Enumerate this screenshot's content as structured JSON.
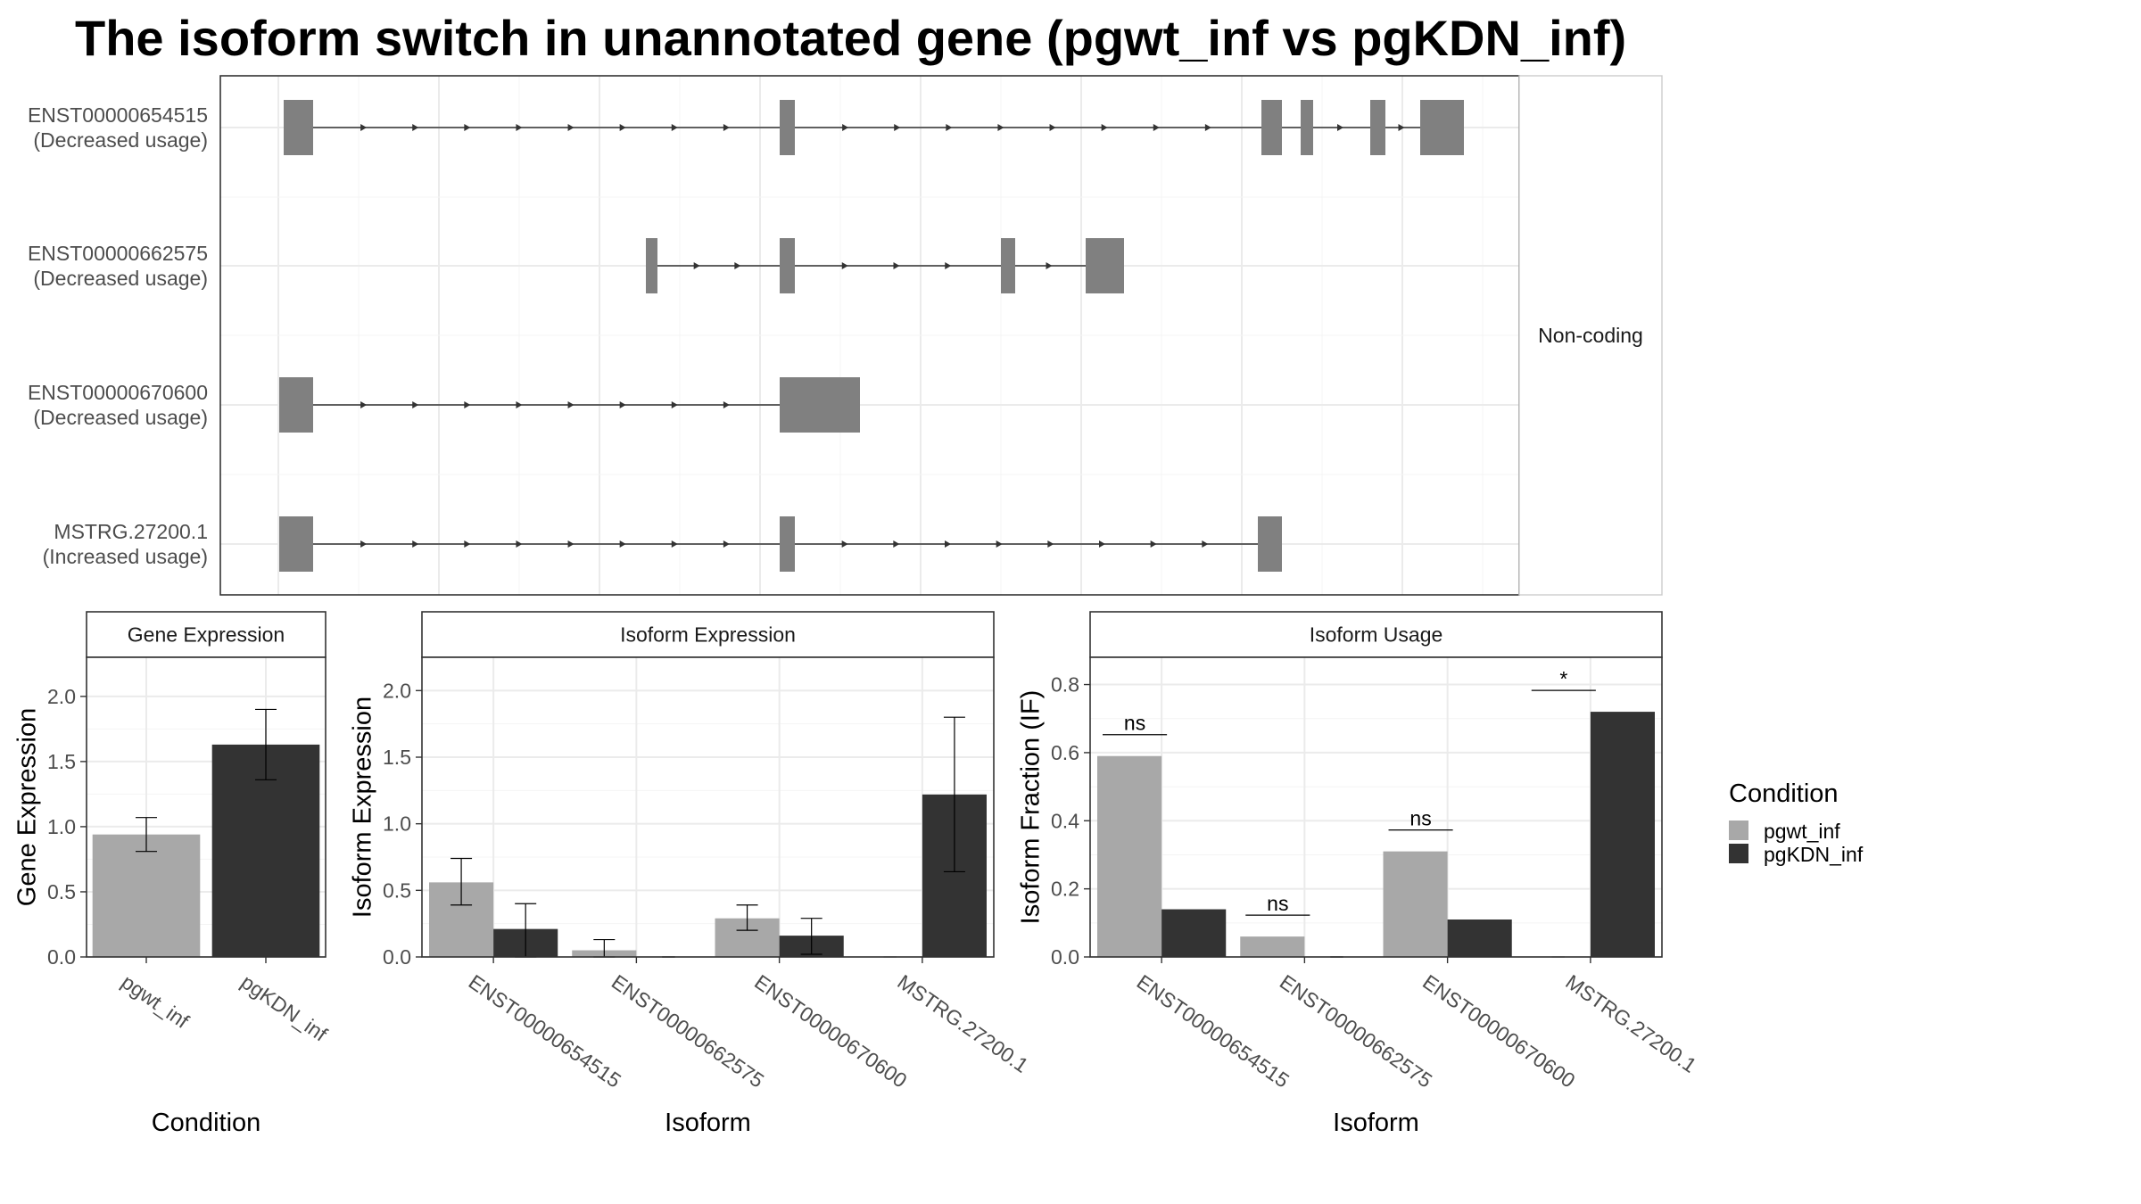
{
  "title": "The isoform switch in unannotated gene (pgwt_inf vs pgKDN_inf)",
  "colors": {
    "pgwt_inf": "#a8a8a8",
    "pgKDN_inf": "#333333",
    "exon": "#808080",
    "grid": "#ebebeb",
    "intron": "#333333"
  },
  "structure_panel": {
    "facet_label": "Non-coding",
    "isoforms": [
      {
        "id": "ENST00000654515",
        "status": "(Decreased usage)"
      },
      {
        "id": "ENST00000662575",
        "status": "(Decreased usage)"
      },
      {
        "id": "ENST00000670600",
        "status": "(Decreased usage)"
      },
      {
        "id": "MSTRG.27200.1",
        "status": "(Increased usage)"
      }
    ]
  },
  "chart_data": [
    {
      "type": "bar",
      "strip": "Gene Expression",
      "xlabel": "Condition",
      "ylabel": "Gene Expression",
      "ylim": [
        0,
        2.3
      ],
      "yticks": [
        0.0,
        0.5,
        1.0,
        1.5,
        2.0
      ],
      "categories": [
        "pgwt_inf",
        "pgKDN_inf"
      ],
      "values": [
        0.94,
        1.63
      ],
      "err_low": [
        0.81,
        1.36
      ],
      "err_high": [
        1.07,
        1.9
      ]
    },
    {
      "type": "bar",
      "strip": "Isoform Expression",
      "xlabel": "Isoform",
      "ylabel": "Isoform Expression",
      "ylim": [
        0,
        2.25
      ],
      "yticks": [
        0.0,
        0.5,
        1.0,
        1.5,
        2.0
      ],
      "categories": [
        "ENST00000654515",
        "ENST00000662575",
        "ENST00000670600",
        "MSTRG.27200.1"
      ],
      "series": [
        {
          "name": "pgwt_inf",
          "values": [
            0.56,
            0.05,
            0.29,
            0.0
          ],
          "err_low": [
            0.39,
            0.0,
            0.2,
            0.0
          ],
          "err_high": [
            0.74,
            0.13,
            0.39,
            0.0
          ]
        },
        {
          "name": "pgKDN_inf",
          "values": [
            0.21,
            0.0,
            0.16,
            1.22
          ],
          "err_low": [
            0.0,
            0.0,
            0.02,
            0.64
          ],
          "err_high": [
            0.4,
            0.0,
            0.29,
            1.8
          ]
        }
      ]
    },
    {
      "type": "bar",
      "strip": "Isoform Usage",
      "xlabel": "Isoform",
      "ylabel": "Isoform Fraction (IF)",
      "ylim": [
        0,
        0.88
      ],
      "yticks": [
        0.0,
        0.2,
        0.4,
        0.6,
        0.8
      ],
      "categories": [
        "ENST00000654515",
        "ENST00000662575",
        "ENST00000670600",
        "MSTRG.27200.1"
      ],
      "series": [
        {
          "name": "pgwt_inf",
          "values": [
            0.59,
            0.06,
            0.31,
            0.0
          ]
        },
        {
          "name": "pgKDN_inf",
          "values": [
            0.14,
            0.0,
            0.11,
            0.72
          ]
        }
      ],
      "significance": [
        "ns",
        "ns",
        "ns",
        "*"
      ]
    }
  ],
  "legend": {
    "title": "Condition",
    "entries": [
      "pgwt_inf",
      "pgKDN_inf"
    ]
  }
}
